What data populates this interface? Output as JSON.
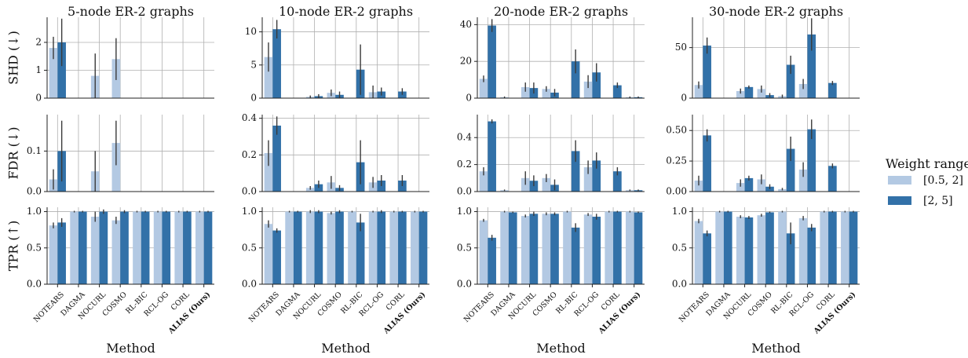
{
  "figure": {
    "legend_title": "Weight range",
    "xlabel": "Method"
  },
  "chart_data": {
    "type": "bar",
    "categories": [
      "NOTEARS",
      "DAGMA",
      "NOCURL",
      "COSMO",
      "RL-BIC",
      "RCL-OG",
      "CORL",
      "ALIAS (Ours)"
    ],
    "bold_category": "ALIAS (Ours)",
    "series_names": [
      "[0.5, 2]",
      "[2, 5]"
    ],
    "colors": [
      "#b3c9e3",
      "#3271a8"
    ],
    "grid": true,
    "legend": "right",
    "columns": [
      "5-node ER-2 graphs",
      "10-node ER-2 graphs",
      "20-node ER-2 graphs",
      "30-node ER-2 graphs"
    ],
    "rows": [
      {
        "label": "SHD (↓)",
        "ylims": [
          [
            0,
            2.9
          ],
          [
            0,
            12.2
          ],
          [
            0,
            44
          ],
          [
            0,
            80
          ]
        ],
        "yticks": [
          [
            0,
            1,
            2
          ],
          [
            0,
            5,
            10
          ],
          [
            0,
            20,
            40
          ],
          [
            0,
            50
          ]
        ],
        "ytick_labels": [
          [
            "0",
            "1",
            "2"
          ],
          [
            "0",
            "5",
            "10"
          ],
          [
            "0",
            "20",
            "40"
          ],
          [
            "0",
            "50"
          ]
        ]
      },
      {
        "label": "FDR (↓)",
        "ylims": [
          [
            0,
            0.19
          ],
          [
            0,
            0.42
          ],
          [
            0,
            0.57
          ],
          [
            0,
            0.63
          ]
        ],
        "yticks": [
          [
            0,
            0.1
          ],
          [
            0,
            0.2,
            0.4
          ],
          [
            0,
            0.2,
            0.4
          ],
          [
            0,
            0.25,
            0.5
          ]
        ],
        "ytick_labels": [
          [
            "0.0",
            "0.1"
          ],
          [
            "0.0",
            "0.2",
            "0.4"
          ],
          [
            "0.0",
            "0.2",
            "0.4"
          ],
          [
            "0.00",
            "0.25",
            "0.50"
          ]
        ]
      },
      {
        "label": "TPR (↑)",
        "ylims": [
          [
            0,
            1.06
          ],
          [
            0,
            1.06
          ],
          [
            0,
            1.06
          ],
          [
            0,
            1.06
          ]
        ],
        "yticks": [
          [
            0,
            0.5,
            1
          ],
          [
            0,
            0.5,
            1
          ],
          [
            0,
            0.5,
            1
          ],
          [
            0,
            0.5,
            1
          ]
        ],
        "ytick_labels": [
          [
            "0.0",
            "0.5",
            "1.0"
          ],
          [
            "0.0",
            "0.5",
            "1.0"
          ],
          [
            "0.0",
            "0.5",
            "1.0"
          ],
          [
            "0.0",
            "0.5",
            "1.0"
          ]
        ]
      }
    ],
    "panels": [
      [
        {
          "a": [
            1.8,
            0,
            0.8,
            1.4,
            0,
            0,
            0,
            0
          ],
          "ae": [
            0.4,
            0,
            0.8,
            0.75,
            0,
            0,
            0,
            0
          ],
          "b": [
            2.0,
            0,
            0,
            0,
            0,
            0,
            0,
            0
          ],
          "be": [
            0.85,
            0,
            0,
            0,
            0,
            0,
            0,
            0
          ]
        },
        {
          "a": [
            6.2,
            0,
            0.2,
            0.8,
            0,
            0.9,
            0,
            0
          ],
          "ae": [
            2.2,
            0,
            0.2,
            0.5,
            0,
            1.0,
            0,
            0
          ],
          "b": [
            10.4,
            0,
            0.3,
            0.5,
            4.3,
            1.0,
            1.0,
            0
          ],
          "be": [
            1.4,
            0,
            0.3,
            0.5,
            3.8,
            0.6,
            0.5,
            0
          ]
        },
        {
          "a": [
            10.5,
            0.5,
            6.0,
            5.0,
            0,
            9.0,
            0,
            0.5
          ],
          "ae": [
            1.8,
            0.4,
            2.5,
            1.5,
            0,
            3.5,
            0,
            0.4
          ],
          "b": [
            39.5,
            0,
            5.5,
            3.0,
            20.0,
            14.0,
            7.0,
            0.5
          ],
          "be": [
            3.5,
            0,
            3.0,
            2.0,
            6.5,
            5.0,
            1.5,
            0.4
          ]
        },
        {
          "a": [
            13.0,
            0,
            7.0,
            9.0,
            2.0,
            14.0,
            0,
            0
          ],
          "ae": [
            3.5,
            0,
            2.5,
            3.5,
            1.5,
            5.0,
            0,
            0
          ],
          "b": [
            52.0,
            0,
            11.0,
            3.0,
            33.0,
            63.0,
            15.0,
            0
          ],
          "be": [
            8.0,
            0,
            1.5,
            2.0,
            9.0,
            16.0,
            2.0,
            0
          ]
        }
      ],
      [
        {
          "a": [
            0.03,
            0,
            0.05,
            0.12,
            0,
            0,
            0,
            0
          ],
          "ae": [
            0.025,
            0,
            0.05,
            0.055,
            0,
            0,
            0,
            0
          ],
          "b": [
            0.1,
            0,
            0,
            0,
            0,
            0,
            0,
            0
          ],
          "be": [
            0.075,
            0,
            0,
            0,
            0,
            0,
            0,
            0
          ]
        },
        {
          "a": [
            0.21,
            0,
            0.02,
            0.05,
            0,
            0.05,
            0,
            0
          ],
          "ae": [
            0.07,
            0,
            0.01,
            0.035,
            0,
            0.03,
            0,
            0
          ],
          "b": [
            0.36,
            0,
            0.04,
            0.02,
            0.16,
            0.06,
            0.06,
            0
          ],
          "be": [
            0.05,
            0,
            0.02,
            0.015,
            0.12,
            0.03,
            0.03,
            0
          ]
        },
        {
          "a": [
            0.15,
            0.01,
            0.1,
            0.1,
            0,
            0.18,
            0,
            0.01
          ],
          "ae": [
            0.03,
            0.005,
            0.05,
            0.03,
            0,
            0.05,
            0,
            0.005
          ],
          "b": [
            0.52,
            0,
            0.08,
            0.05,
            0.3,
            0.23,
            0.15,
            0.01
          ],
          "be": [
            0.015,
            0,
            0.04,
            0.04,
            0.08,
            0.06,
            0.03,
            0.005
          ]
        },
        {
          "a": [
            0.09,
            0,
            0.07,
            0.1,
            0.02,
            0.18,
            0,
            0
          ],
          "ae": [
            0.04,
            0,
            0.03,
            0.04,
            0.01,
            0.06,
            0,
            0
          ],
          "b": [
            0.46,
            0,
            0.11,
            0.04,
            0.35,
            0.51,
            0.21,
            0
          ],
          "be": [
            0.05,
            0,
            0.02,
            0.02,
            0.1,
            0.08,
            0.02,
            0
          ]
        }
      ],
      [
        {
          "a": [
            0.81,
            1.0,
            0.93,
            0.88,
            1.0,
            1.0,
            1.0,
            1.0
          ],
          "ae": [
            0.04,
            0,
            0.07,
            0.05,
            0,
            0,
            0,
            0
          ],
          "b": [
            0.85,
            1.0,
            1.0,
            1.0,
            1.0,
            1.0,
            1.0,
            1.0
          ],
          "be": [
            0.06,
            0,
            0.03,
            0.02,
            0,
            0,
            0,
            0
          ]
        },
        {
          "a": [
            0.83,
            1.0,
            1.0,
            0.98,
            1.0,
            1.0,
            1.0,
            1.0
          ],
          "ae": [
            0.05,
            0,
            0.02,
            0.02,
            0,
            0,
            0,
            0
          ],
          "b": [
            0.74,
            1.0,
            1.0,
            1.0,
            0.85,
            1.0,
            1.0,
            1.0
          ],
          "be": [
            0.03,
            0,
            0.02,
            0.02,
            0.12,
            0.02,
            0,
            0
          ]
        },
        {
          "a": [
            0.88,
            1.0,
            0.94,
            0.97,
            1.0,
            0.96,
            1.0,
            1.0
          ],
          "ae": [
            0.02,
            0,
            0.02,
            0.02,
            0,
            0.02,
            0,
            0
          ],
          "b": [
            0.64,
            0.99,
            0.97,
            0.97,
            0.78,
            0.93,
            1.0,
            0.99
          ],
          "be": [
            0.04,
            0.01,
            0.03,
            0.02,
            0.06,
            0.04,
            0,
            0.01
          ]
        },
        {
          "a": [
            0.87,
            1.0,
            0.93,
            0.95,
            1.0,
            0.91,
            1.0,
            1.0
          ],
          "ae": [
            0.03,
            0,
            0.02,
            0.02,
            0,
            0.03,
            0,
            0
          ],
          "b": [
            0.7,
            1.0,
            0.92,
            0.99,
            0.7,
            0.78,
            1.0,
            1.0
          ],
          "be": [
            0.04,
            0,
            0.02,
            0.01,
            0.15,
            0.05,
            0,
            0
          ]
        }
      ]
    ]
  }
}
